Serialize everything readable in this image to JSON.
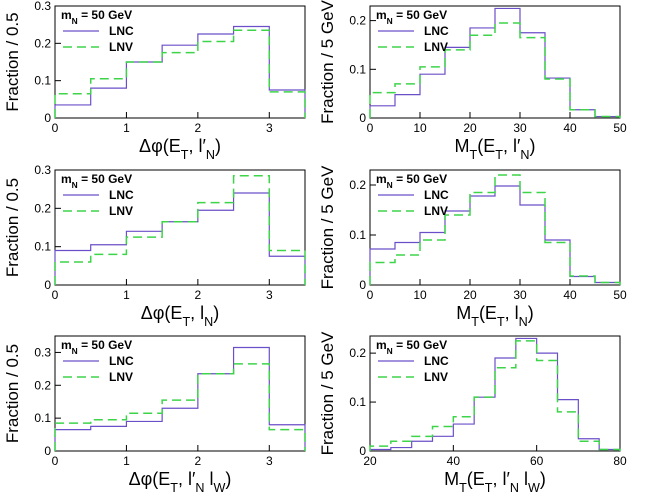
{
  "colors": {
    "lnc": "#6b4fc8",
    "lnv": "#3ed44a",
    "axis": "#000000"
  },
  "chart_data": [
    {
      "type": "bar",
      "histogram": true,
      "bin_edges": [
        0,
        0.5,
        1.0,
        1.5,
        2.0,
        2.5,
        3.0,
        3.5
      ],
      "series": [
        {
          "name": "LNC",
          "values": [
            0.035,
            0.08,
            0.15,
            0.195,
            0.225,
            0.245,
            0.075
          ]
        },
        {
          "name": "LNV",
          "values": [
            0.065,
            0.105,
            0.15,
            0.175,
            0.205,
            0.235,
            0.07
          ]
        }
      ],
      "annotation": "m_N = 50 GeV",
      "xlabel": "Δφ(E_T, l′_N)",
      "ylabel": "Fraction / 0.5",
      "xlim": [
        0,
        3.5
      ],
      "ylim": [
        0,
        0.3
      ],
      "xticks": [
        "0",
        "1",
        "2",
        "3"
      ],
      "yticks": [
        "0",
        "0.1",
        "0.2",
        "0.3"
      ],
      "legend_position": "top-left"
    },
    {
      "type": "bar",
      "histogram": true,
      "bin_edges": [
        0,
        5,
        10,
        15,
        20,
        25,
        30,
        35,
        40,
        45,
        50
      ],
      "series": [
        {
          "name": "LNC",
          "values": [
            0.025,
            0.048,
            0.09,
            0.145,
            0.185,
            0.225,
            0.175,
            0.082,
            0.017,
            0.003
          ]
        },
        {
          "name": "LNV",
          "values": [
            0.052,
            0.07,
            0.105,
            0.14,
            0.17,
            0.195,
            0.165,
            0.08,
            0.017,
            0.003
          ]
        }
      ],
      "annotation": "m_N = 50 GeV",
      "xlabel": "M_T(E_T, l′_N)",
      "ylabel": "Fraction / 5 GeV",
      "xlim": [
        0,
        50
      ],
      "ylim": [
        0,
        0.23
      ],
      "xticks": [
        "0",
        "10",
        "20",
        "30",
        "40",
        "50"
      ],
      "yticks": [
        "0",
        "0.1",
        "0.2"
      ],
      "legend_position": "top-left"
    },
    {
      "type": "bar",
      "histogram": true,
      "bin_edges": [
        0,
        0.5,
        1.0,
        1.5,
        2.0,
        2.5,
        3.0,
        3.5
      ],
      "series": [
        {
          "name": "LNC",
          "values": [
            0.09,
            0.105,
            0.14,
            0.165,
            0.195,
            0.24,
            0.075
          ]
        },
        {
          "name": "LNV",
          "values": [
            0.06,
            0.08,
            0.125,
            0.165,
            0.215,
            0.285,
            0.09
          ]
        }
      ],
      "annotation": "m_N = 50 GeV",
      "xlabel": "Δφ(E_T, l_N)",
      "ylabel": "Fraction / 0.5",
      "xlim": [
        0,
        3.5
      ],
      "ylim": [
        0,
        0.3
      ],
      "xticks": [
        "0",
        "1",
        "2",
        "3"
      ],
      "yticks": [
        "0",
        "0.1",
        "0.2",
        "0.3"
      ],
      "legend_position": "top-left"
    },
    {
      "type": "bar",
      "histogram": true,
      "bin_edges": [
        0,
        5,
        10,
        15,
        20,
        25,
        30,
        35,
        40,
        45,
        50
      ],
      "series": [
        {
          "name": "LNC",
          "values": [
            0.072,
            0.085,
            0.105,
            0.148,
            0.178,
            0.198,
            0.16,
            0.09,
            0.017,
            0.005
          ]
        },
        {
          "name": "LNV",
          "values": [
            0.045,
            0.06,
            0.09,
            0.14,
            0.185,
            0.22,
            0.185,
            0.085,
            0.018,
            0.005
          ]
        }
      ],
      "annotation": "m_N = 50 GeV",
      "xlabel": "M_T(E_T, l_N)",
      "ylabel": "Fraction / 5 GeV",
      "xlim": [
        0,
        50
      ],
      "ylim": [
        0,
        0.23
      ],
      "xticks": [
        "0",
        "10",
        "20",
        "30",
        "40",
        "50"
      ],
      "yticks": [
        "0",
        "0.1",
        "0.2"
      ],
      "legend_position": "top-left"
    },
    {
      "type": "bar",
      "histogram": true,
      "bin_edges": [
        0,
        0.5,
        1.0,
        1.5,
        2.0,
        2.5,
        3.0,
        3.5
      ],
      "series": [
        {
          "name": "LNC",
          "values": [
            0.065,
            0.075,
            0.09,
            0.13,
            0.235,
            0.315,
            0.08
          ]
        },
        {
          "name": "LNV",
          "values": [
            0.085,
            0.095,
            0.115,
            0.155,
            0.235,
            0.265,
            0.065
          ]
        }
      ],
      "annotation": "m_N = 50 GeV",
      "xlabel": "Δφ(E_T, l′_N l_W)",
      "ylabel": "Fraction / 0.5",
      "xlim": [
        0,
        3.5
      ],
      "ylim": [
        0,
        0.35
      ],
      "xticks": [
        "0",
        "1",
        "2",
        "3"
      ],
      "yticks": [
        "0",
        "0.1",
        "0.2",
        "0.3"
      ],
      "legend_position": "top-left"
    },
    {
      "type": "bar",
      "histogram": true,
      "bin_edges": [
        20,
        25,
        30,
        35,
        40,
        45,
        50,
        55,
        60,
        65,
        70,
        75,
        80
      ],
      "series": [
        {
          "name": "LNC",
          "values": [
            0.003,
            0.007,
            0.02,
            0.03,
            0.055,
            0.11,
            0.19,
            0.23,
            0.2,
            0.105,
            0.025,
            0.003
          ]
        },
        {
          "name": "LNV",
          "values": [
            0.01,
            0.02,
            0.03,
            0.05,
            0.07,
            0.11,
            0.17,
            0.225,
            0.185,
            0.08,
            0.02,
            0.003
          ]
        }
      ],
      "annotation": "m_N = 50 GeV",
      "xlabel": "M_T(E_T, l′_N l_W)",
      "ylabel": "Fraction / 5 GeV",
      "xlim": [
        20,
        80
      ],
      "ylim": [
        0,
        0.235
      ],
      "xticks": [
        "20",
        "40",
        "60",
        "80"
      ],
      "yticks": [
        "0",
        "0.1",
        "0.2"
      ],
      "legend_position": "top-left"
    }
  ]
}
